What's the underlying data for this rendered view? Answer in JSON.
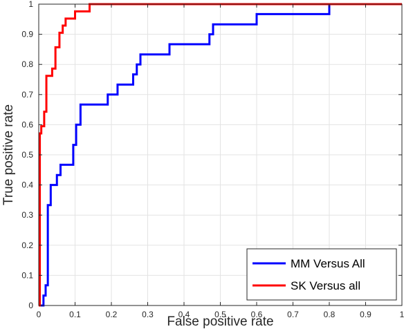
{
  "chart_data": {
    "type": "line",
    "xlabel": "False positive rate",
    "ylabel": "True positive rate",
    "xlim": [
      0,
      1
    ],
    "ylim": [
      0,
      1
    ],
    "xticks": [
      "0",
      "0.1",
      "0.2",
      "0.3",
      "0.4",
      "0.5",
      "0.6",
      "0.7",
      "0.8",
      "0.9",
      "1"
    ],
    "yticks": [
      "0",
      "0.1",
      "0.2",
      "0.3",
      "0.4",
      "0.5",
      "0.6",
      "0.7",
      "0.8",
      "0.9",
      "1"
    ],
    "grid": true,
    "legend_position": "bottom-right",
    "series": [
      {
        "name": "MM Versus All",
        "color": "#0000ff",
        "x": [
          0,
          0.013,
          0.013,
          0.019,
          0.019,
          0.025,
          0.025,
          0.033,
          0.033,
          0.05,
          0.05,
          0.06,
          0.06,
          0.095,
          0.095,
          0.103,
          0.103,
          0.115,
          0.115,
          0.19,
          0.19,
          0.217,
          0.217,
          0.26,
          0.26,
          0.27,
          0.27,
          0.28,
          0.28,
          0.36,
          0.36,
          0.47,
          0.47,
          0.48,
          0.48,
          0.6,
          0.6,
          0.8,
          0.8,
          1
        ],
        "y": [
          0,
          0,
          0.033,
          0.033,
          0.067,
          0.067,
          0.333,
          0.333,
          0.4,
          0.4,
          0.433,
          0.433,
          0.467,
          0.467,
          0.533,
          0.533,
          0.6,
          0.6,
          0.667,
          0.667,
          0.7,
          0.7,
          0.733,
          0.733,
          0.767,
          0.767,
          0.8,
          0.8,
          0.833,
          0.833,
          0.867,
          0.867,
          0.9,
          0.9,
          0.933,
          0.933,
          0.967,
          0.967,
          1,
          1
        ]
      },
      {
        "name": "SK Versus all",
        "color": "#ff0000",
        "x": [
          0,
          0.003,
          0.003,
          0.007,
          0.007,
          0.015,
          0.015,
          0.021,
          0.021,
          0.037,
          0.037,
          0.046,
          0.046,
          0.057,
          0.057,
          0.066,
          0.066,
          0.074,
          0.074,
          0.1,
          0.1,
          0.115,
          0.115,
          0.13,
          0.13,
          0.14,
          0.14,
          1
        ],
        "y": [
          0,
          0,
          0.571,
          0.571,
          0.595,
          0.595,
          0.643,
          0.643,
          0.762,
          0.762,
          0.786,
          0.786,
          0.857,
          0.857,
          0.905,
          0.905,
          0.929,
          0.929,
          0.952,
          0.952,
          0.976,
          0.976,
          0.976,
          0.976,
          0.976,
          0.976,
          1,
          1
        ]
      }
    ]
  }
}
